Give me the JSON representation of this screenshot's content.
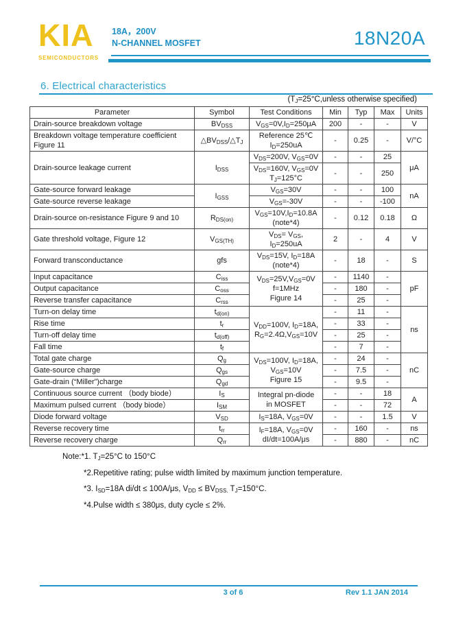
{
  "brand": {
    "logo": "KIA",
    "subtitle": "SEMICONDUCTORS",
    "rating": "18A，200V",
    "device_type": "N-CHANNEL MOSFET",
    "part_number": "18N20A"
  },
  "section": {
    "title": "6.  Electrical characteristics",
    "condition_note": "(T~J~=25°C,unless otherwise specified)"
  },
  "table": {
    "headers": [
      "Parameter",
      "Symbol",
      "Test Conditions",
      "Min",
      "Typ",
      "Max",
      "Units"
    ],
    "rows": [
      [
        {
          "t": "Drain-source breakdown voltage",
          "a": "l"
        },
        {
          "t": "BV~DSS~"
        },
        {
          "t": "V~GS~=0V,I~D~=250μA"
        },
        {
          "t": "200"
        },
        {
          "t": "-"
        },
        {
          "t": "-"
        },
        {
          "t": "V"
        }
      ],
      [
        {
          "t": "Breakdown voltage temperature coefficient\nFigure 11",
          "a": "l"
        },
        {
          "t": "△BV~DSS~/△T~J~"
        },
        {
          "t": "Reference 25℃\nI~D~=250uA"
        },
        {
          "t": "-"
        },
        {
          "t": "0.25"
        },
        {
          "t": "-"
        },
        {
          "t": "V/°C"
        }
      ],
      [
        {
          "t": "Drain-source leakage current",
          "a": "l",
          "rs": 2
        },
        {
          "t": "I~DSS~",
          "rs": 2
        },
        {
          "t": "V~DS~=200V, V~GS~=0V"
        },
        {
          "t": "-"
        },
        {
          "t": "-"
        },
        {
          "t": "25"
        },
        {
          "t": "μA",
          "rs": 2
        }
      ],
      [
        {
          "t": "V~DS~=160V, V~GS~=0V\nT~J~=125°C"
        },
        {
          "t": "-"
        },
        {
          "t": "-"
        },
        {
          "t": "250"
        }
      ],
      [
        {
          "t": "Gate-source forward leakage",
          "a": "l"
        },
        {
          "t": "I~GSS~",
          "rs": 2
        },
        {
          "t": "V~GS~=30V"
        },
        {
          "t": "-"
        },
        {
          "t": "-"
        },
        {
          "t": "100"
        },
        {
          "t": "nA",
          "rs": 2
        }
      ],
      [
        {
          "t": "Gate-source reverse leakage",
          "a": "l"
        },
        {
          "t": "V~GS~=-30V"
        },
        {
          "t": "-"
        },
        {
          "t": "-"
        },
        {
          "t": "-100"
        }
      ],
      [
        {
          "t": "Drain-source on-resistance Figure 9 and 10",
          "a": "l"
        },
        {
          "t": "R~DS(on)~"
        },
        {
          "t": "V~GS~=10V,I~D~=10.8A\n(note*4)"
        },
        {
          "t": "-"
        },
        {
          "t": "0.12"
        },
        {
          "t": "0.18"
        },
        {
          "t": "Ω"
        }
      ],
      [
        {
          "t": "Gate threshold voltage, Figure 12",
          "a": "l"
        },
        {
          "t": "V~GS(TH)~"
        },
        {
          "t": "V~DS~= V~GS~,\nI~D~=250uA"
        },
        {
          "t": "2"
        },
        {
          "t": "-"
        },
        {
          "t": "4"
        },
        {
          "t": "V"
        }
      ],
      [
        {
          "t": "Forward transconductance",
          "a": "l"
        },
        {
          "t": "gfs"
        },
        {
          "t": "V~DS~=15V, I~D~=18A\n(note*4)"
        },
        {
          "t": "-"
        },
        {
          "t": "18"
        },
        {
          "t": "-"
        },
        {
          "t": "S"
        }
      ],
      [
        {
          "t": "Input capacitance",
          "a": "l"
        },
        {
          "t": "C~iss~"
        },
        {
          "t": "V~DS~=25V,V~GS~=0V\nf=1MHz\nFigure 14",
          "rs": 3
        },
        {
          "t": "-"
        },
        {
          "t": "1140"
        },
        {
          "t": "-"
        },
        {
          "t": "pF",
          "rs": 3
        }
      ],
      [
        {
          "t": "Output capacitance",
          "a": "l"
        },
        {
          "t": "C~oss~"
        },
        {
          "t": "-"
        },
        {
          "t": "180"
        },
        {
          "t": "-"
        }
      ],
      [
        {
          "t": "Reverse transfer capacitance",
          "a": "l"
        },
        {
          "t": "C~rss~"
        },
        {
          "t": "-"
        },
        {
          "t": "25"
        },
        {
          "t": "-"
        }
      ],
      [
        {
          "t": "Turn-on delay time",
          "a": "l"
        },
        {
          "t": "t~d(on)~"
        },
        {
          "t": "V~DD~=100V, I~D~=18A,\nR~G~=2.4Ω,V~GS~=10V",
          "rs": 4
        },
        {
          "t": "-"
        },
        {
          "t": "11"
        },
        {
          "t": "-"
        },
        {
          "t": "ns",
          "rs": 4
        }
      ],
      [
        {
          "t": "Rise time",
          "a": "l"
        },
        {
          "t": "t~r~"
        },
        {
          "t": "-"
        },
        {
          "t": "33"
        },
        {
          "t": "-"
        }
      ],
      [
        {
          "t": "Turn-off delay time",
          "a": "l"
        },
        {
          "t": "t~d(off)~"
        },
        {
          "t": "-"
        },
        {
          "t": "25"
        },
        {
          "t": "-"
        }
      ],
      [
        {
          "t": "Fall time",
          "a": "l"
        },
        {
          "t": "t~f~"
        },
        {
          "t": "-"
        },
        {
          "t": "7"
        },
        {
          "t": "-"
        }
      ],
      [
        {
          "t": "Total gate charge",
          "a": "l"
        },
        {
          "t": "Q~g~"
        },
        {
          "t": "V~DS~=100V, I~D~=18A,\nV~GS~=10V\nFigure 15",
          "rs": 3
        },
        {
          "t": "-"
        },
        {
          "t": "24"
        },
        {
          "t": "-"
        },
        {
          "t": "nC",
          "rs": 3
        }
      ],
      [
        {
          "t": "Gate-source charge",
          "a": "l"
        },
        {
          "t": "Q~gs~"
        },
        {
          "t": "-"
        },
        {
          "t": "7.5"
        },
        {
          "t": "-"
        }
      ],
      [
        {
          "t": "Gate-drain (“Miller”)charge",
          "a": "l"
        },
        {
          "t": "Q~gd~"
        },
        {
          "t": "-"
        },
        {
          "t": "9.5"
        },
        {
          "t": "-"
        }
      ],
      [
        {
          "t": "Continuous source current （body biode）",
          "a": "l"
        },
        {
          "t": "I~S~"
        },
        {
          "t": "Integral pn-diode\nin MOSFET",
          "rs": 2
        },
        {
          "t": "-"
        },
        {
          "t": "-"
        },
        {
          "t": "18"
        },
        {
          "t": "A",
          "rs": 2
        }
      ],
      [
        {
          "t": "Maximum pulsed current （body biode）",
          "a": "l"
        },
        {
          "t": "I~SM~"
        },
        {
          "t": "-"
        },
        {
          "t": "-"
        },
        {
          "t": "72"
        }
      ],
      [
        {
          "t": "Diode forward voltage",
          "a": "l"
        },
        {
          "t": "V~SD~"
        },
        {
          "t": "I~S~=18A, V~GS~=0V"
        },
        {
          "t": "-"
        },
        {
          "t": "-"
        },
        {
          "t": "1.5"
        },
        {
          "t": "V"
        }
      ],
      [
        {
          "t": "Reverse recovery time",
          "a": "l"
        },
        {
          "t": "t~rr~"
        },
        {
          "t": "I~F~=18A, V~GS~=0V\ndI/dt=100A/μs",
          "rs": 2
        },
        {
          "t": "-"
        },
        {
          "t": "160"
        },
        {
          "t": "-"
        },
        {
          "t": "ns"
        }
      ],
      [
        {
          "t": "Reverse recovery charge",
          "a": "l"
        },
        {
          "t": "Q~rr~"
        },
        {
          "t": "-"
        },
        {
          "t": "880"
        },
        {
          "t": "-"
        },
        {
          "t": "nC"
        }
      ]
    ]
  },
  "notes": [
    "Note:*1. T~J~=25°C to 150°C",
    "*2.Repetitive rating; pulse width limited by maximum junction temperature.",
    "*3. I~SD~=18A di/dt ≤ 100A/μs, V~DD~ ≤ BV~DSS.~ T~J~=150°C.",
    "*4.Pulse width ≤ 380μs, duty cycle ≤ 2%."
  ],
  "footer": {
    "page_number": "3 of 6",
    "revision": "Rev 1.1 JAN 2014"
  },
  "colors": {
    "accent_teal": "#1d96c5",
    "logo_yellow": "#eec11c"
  }
}
